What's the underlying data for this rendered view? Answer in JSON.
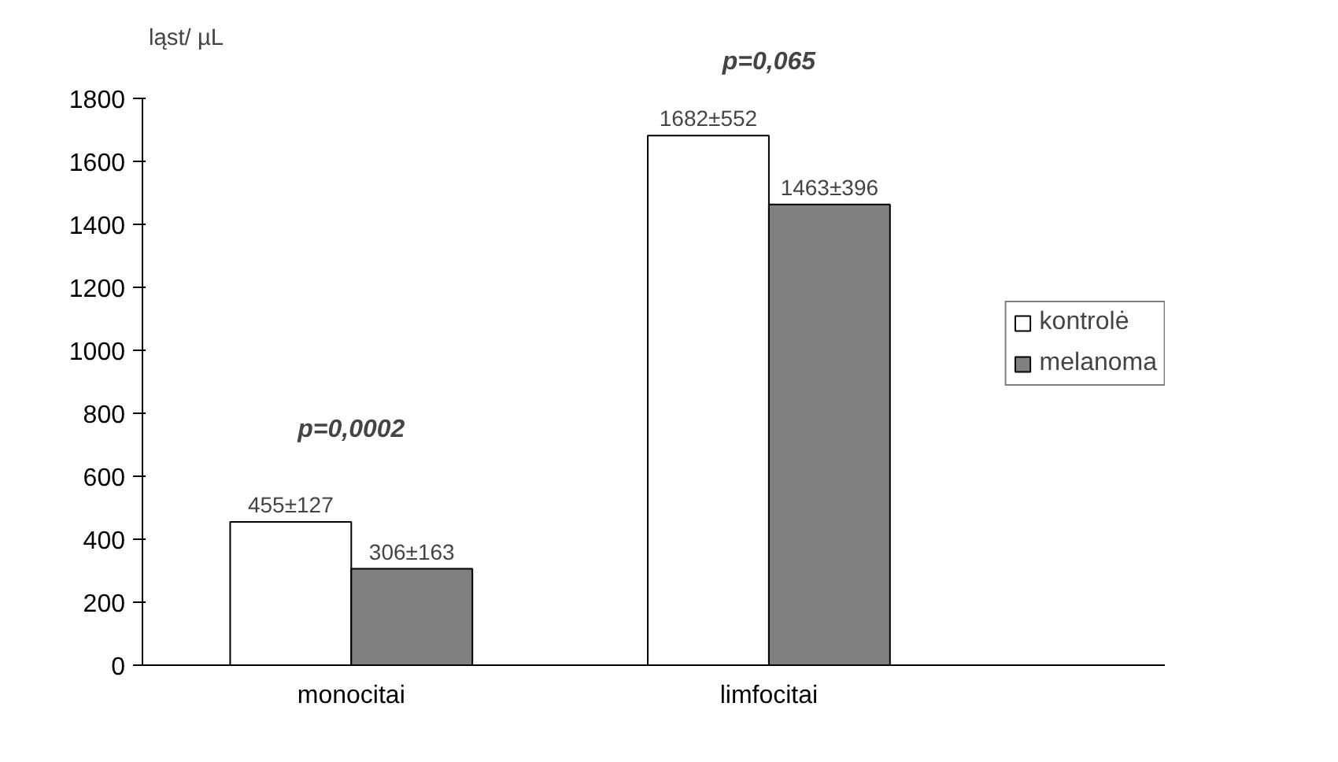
{
  "chart_data": {
    "type": "bar",
    "ylabel": "ląst/ µL",
    "categories": [
      "monocitai",
      "limfocitai"
    ],
    "series": [
      {
        "name": "kontrolė",
        "color": "#ffffff",
        "values": [
          455,
          1682
        ],
        "value_labels": [
          "455±127",
          "1682±552"
        ]
      },
      {
        "name": "melanoma",
        "color": "#808080",
        "values": [
          306,
          1463
        ],
        "value_labels": [
          "306±163",
          "1463±396"
        ]
      }
    ],
    "ylim": [
      0,
      1800
    ],
    "yticks": [
      0,
      200,
      400,
      600,
      800,
      1000,
      1200,
      1400,
      1600,
      1800
    ],
    "annotations": [
      "p=0,0002",
      "p=0,065"
    ],
    "grid": false,
    "legend": "right"
  }
}
